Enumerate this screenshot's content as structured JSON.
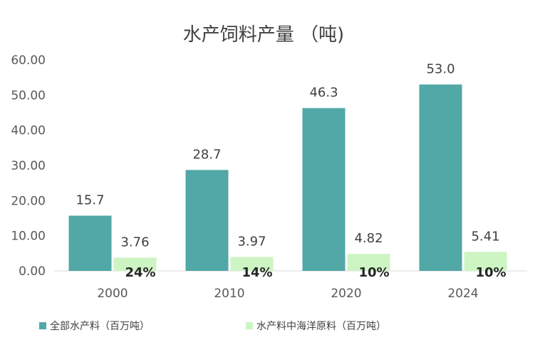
{
  "chart_data": {
    "type": "bar",
    "title": "水产饲料产量 （吨)",
    "categories": [
      "2000",
      "2010",
      "2020",
      "2024"
    ],
    "series": [
      {
        "name": "全部水产料（百万吨）",
        "values": [
          15.7,
          28.7,
          46.3,
          53.0
        ],
        "labels": [
          "15.7",
          "28.7",
          "46.3",
          "53.0"
        ],
        "color": "#52a7a7"
      },
      {
        "name": "水产料中海洋原料（百万吨）",
        "values": [
          3.76,
          3.97,
          4.82,
          5.41
        ],
        "labels": [
          "3.76",
          "3.97",
          "4.82",
          "5.41"
        ],
        "color": "#cdf5c4"
      }
    ],
    "share_labels": [
      "24%",
      "14%",
      "10%",
      "10%"
    ],
    "yticks": [
      "0.00",
      "10.00",
      "20.00",
      "30.00",
      "40.00",
      "50.00",
      "60.00"
    ],
    "ylim": [
      0,
      60
    ],
    "xlabel": "",
    "ylabel": "",
    "grid": false,
    "legend_position": "bottom-left"
  }
}
